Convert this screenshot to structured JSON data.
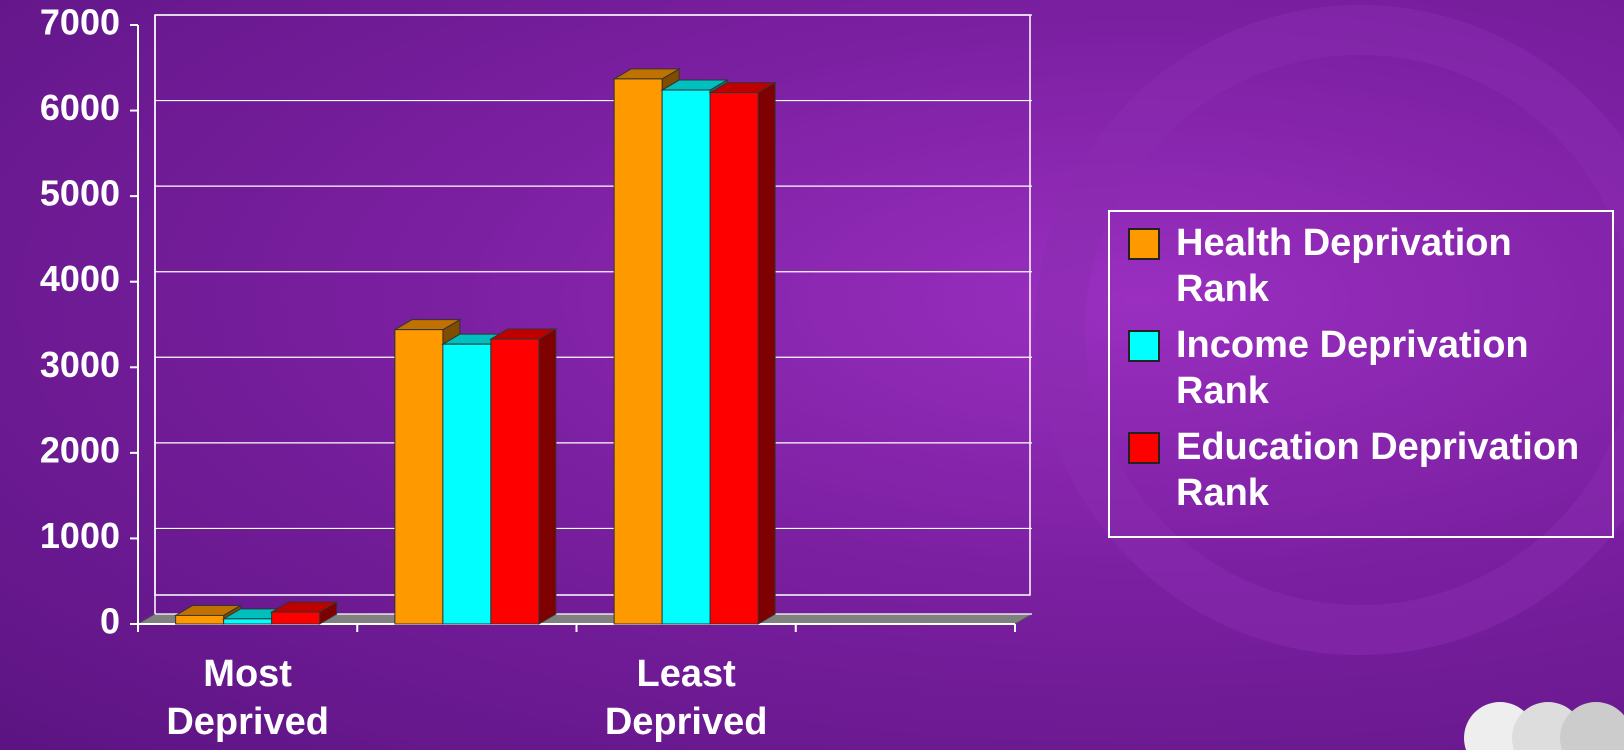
{
  "chart_data": {
    "type": "bar3d",
    "categories": [
      "Most Deprived",
      null,
      "Least Deprived",
      null
    ],
    "series": [
      {
        "name": "Health Deprivation Rank",
        "color": "#ff9900",
        "values": [
          100,
          3440,
          6370,
          null
        ]
      },
      {
        "name": "Income Deprivation Rank",
        "color": "#00ffff",
        "values": [
          60,
          3270,
          6240,
          null
        ]
      },
      {
        "name": "Education Deprivation Rank",
        "color": "#ff0000",
        "values": [
          140,
          3330,
          6210,
          null
        ]
      }
    ],
    "ylim": [
      0,
      7000
    ],
    "yticks": [
      0,
      1000,
      2000,
      3000,
      4000,
      5000,
      6000,
      7000
    ],
    "grid": true,
    "legend": "right"
  }
}
